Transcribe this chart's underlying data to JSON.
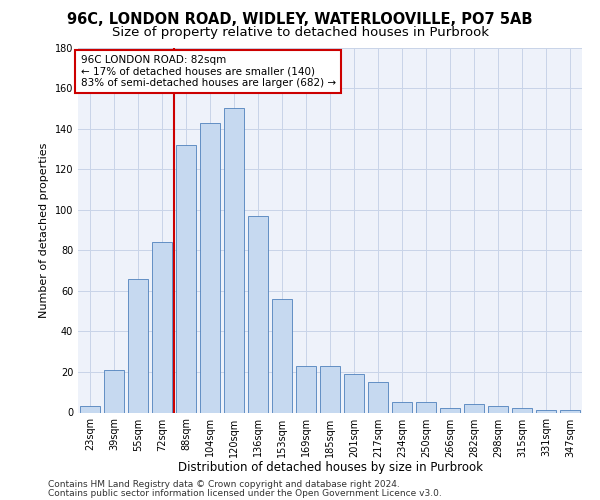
{
  "title1": "96C, LONDON ROAD, WIDLEY, WATERLOOVILLE, PO7 5AB",
  "title2": "Size of property relative to detached houses in Purbrook",
  "xlabel": "Distribution of detached houses by size in Purbrook",
  "ylabel": "Number of detached properties",
  "categories": [
    "23sqm",
    "39sqm",
    "55sqm",
    "72sqm",
    "88sqm",
    "104sqm",
    "120sqm",
    "136sqm",
    "153sqm",
    "169sqm",
    "185sqm",
    "201sqm",
    "217sqm",
    "234sqm",
    "250sqm",
    "266sqm",
    "282sqm",
    "298sqm",
    "315sqm",
    "331sqm",
    "347sqm"
  ],
  "values": [
    3,
    21,
    66,
    84,
    132,
    143,
    150,
    97,
    56,
    23,
    23,
    19,
    15,
    5,
    5,
    2,
    4,
    3,
    2,
    1,
    1
  ],
  "bar_color": "#c6d9f0",
  "bar_edge_color": "#4f81bd",
  "vline_color": "#cc0000",
  "vline_x_index": 4,
  "annotation_text": "96C LONDON ROAD: 82sqm\n← 17% of detached houses are smaller (140)\n83% of semi-detached houses are larger (682) →",
  "annotation_box_facecolor": "#ffffff",
  "annotation_box_edgecolor": "#cc0000",
  "ylim": [
    0,
    180
  ],
  "yticks": [
    0,
    20,
    40,
    60,
    80,
    100,
    120,
    140,
    160,
    180
  ],
  "grid_color": "#c8d4e8",
  "bg_color": "#eef2fa",
  "footer1": "Contains HM Land Registry data © Crown copyright and database right 2024.",
  "footer2": "Contains public sector information licensed under the Open Government Licence v3.0.",
  "title1_fontsize": 10.5,
  "title2_fontsize": 9.5,
  "xlabel_fontsize": 8.5,
  "ylabel_fontsize": 8,
  "tick_fontsize": 7,
  "annotation_fontsize": 7.5,
  "footer_fontsize": 6.5
}
